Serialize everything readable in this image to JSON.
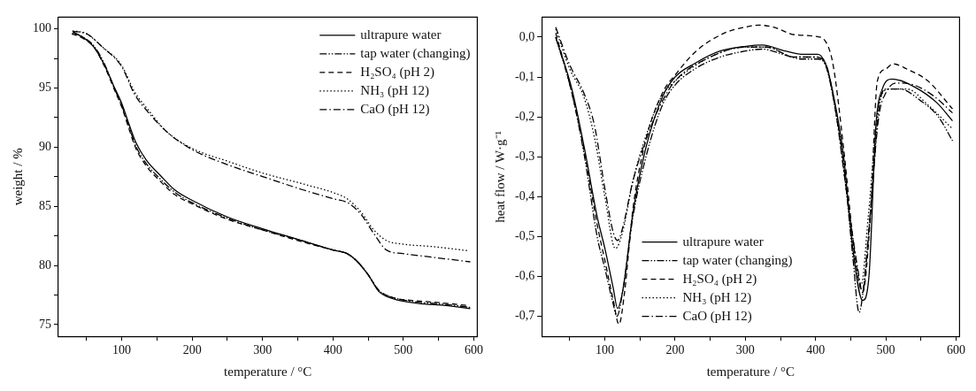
{
  "chart_data": [
    {
      "type": "line",
      "xlabel": "temperature / °C",
      "ylabel": "weight / %",
      "xlim": [
        10,
        605
      ],
      "ylim": [
        74,
        101
      ],
      "xticks": [
        {
          "value": 50,
          "label": null
        },
        100,
        {
          "value": 150,
          "label": null
        },
        200,
        {
          "value": 250,
          "label": null
        },
        300,
        {
          "value": 350,
          "label": null
        },
        400,
        {
          "value": 450,
          "label": null
        },
        500,
        {
          "value": 550,
          "label": null
        },
        600
      ],
      "yticks": [
        75,
        {
          "value": 77.5,
          "label": null
        },
        80,
        {
          "value": 82.5,
          "label": null
        },
        85,
        {
          "value": 87.5,
          "label": null
        },
        90,
        {
          "value": 92.5,
          "label": null
        },
        95,
        {
          "value": 97.5,
          "label": null
        },
        100
      ],
      "grid": false,
      "legend": "top right",
      "marker": "none",
      "series": [
        {
          "name": "ultrapure water",
          "color": "#000000",
          "line_style": "solid",
          "x": [
            30,
            45,
            60,
            75,
            90,
            100,
            110,
            120,
            135,
            155,
            175,
            200,
            250,
            300,
            350,
            400,
            420,
            435,
            450,
            465,
            475,
            490,
            520,
            560,
            595
          ],
          "values": [
            99.7,
            99.3,
            98.5,
            97.0,
            95.0,
            93.7,
            92.0,
            90.4,
            88.9,
            87.6,
            86.4,
            85.5,
            84.1,
            83.1,
            82.2,
            81.3,
            81.0,
            80.3,
            79.2,
            77.8,
            77.4,
            77.1,
            76.8,
            76.6,
            76.35
          ]
        },
        {
          "name": "tap water (changing)",
          "color": "#000000",
          "line_style": "dashdotdot",
          "x": [
            31,
            45,
            60,
            75,
            90,
            100,
            110,
            120,
            135,
            155,
            175,
            200,
            250,
            300,
            350,
            400,
            420,
            435,
            450,
            465,
            475,
            490,
            520,
            560,
            595
          ],
          "values": [
            99.75,
            99.3,
            98.6,
            97.1,
            94.9,
            93.5,
            91.8,
            90.1,
            88.6,
            87.3,
            86.2,
            85.3,
            84.0,
            83.0,
            82.2,
            81.3,
            81.0,
            80.3,
            79.2,
            77.9,
            77.5,
            77.2,
            76.9,
            76.7,
            76.45
          ]
        },
        {
          "name": "H₂SO₄ (pH 2)",
          "color": "#000000",
          "line_style": "dashed",
          "x": [
            29,
            45,
            60,
            75,
            90,
            100,
            110,
            120,
            135,
            155,
            175,
            200,
            250,
            300,
            350,
            400,
            420,
            435,
            450,
            465,
            475,
            490,
            520,
            560,
            592
          ],
          "values": [
            99.6,
            99.2,
            98.5,
            96.9,
            94.8,
            93.4,
            91.6,
            89.9,
            88.4,
            87.1,
            86.0,
            85.2,
            83.9,
            83.0,
            82.1,
            81.3,
            81.0,
            80.3,
            79.2,
            77.9,
            77.5,
            77.2,
            77.0,
            76.8,
            76.6
          ]
        },
        {
          "name": "NH₃ (pH 12)",
          "color": "#000000",
          "line_style": "dotted",
          "x": [
            30,
            50,
            72,
            100,
            118,
            137,
            164,
            200,
            251,
            301,
            357,
            403,
            421,
            440,
            458,
            476,
            499,
            540,
            591
          ],
          "values": [
            99.85,
            99.6,
            98.5,
            96.9,
            94.7,
            93.2,
            91.3,
            89.9,
            88.8,
            87.8,
            86.9,
            86.1,
            85.6,
            84.5,
            83.0,
            82.1,
            81.8,
            81.6,
            81.25
          ]
        },
        {
          "name": "CaO (pH 12)",
          "color": "#000000",
          "line_style": "dashdot",
          "x": [
            30,
            50,
            72,
            100,
            118,
            137,
            164,
            200,
            251,
            301,
            357,
            403,
            421,
            440,
            458,
            476,
            499,
            540,
            595
          ],
          "values": [
            99.8,
            99.6,
            98.5,
            96.8,
            94.5,
            93.0,
            91.3,
            89.8,
            88.5,
            87.5,
            86.4,
            85.6,
            85.3,
            84.3,
            82.7,
            81.3,
            81.0,
            80.7,
            80.3
          ]
        }
      ]
    },
    {
      "type": "line",
      "xlabel": "temperature / °C",
      "ylabel": "heat flow / W·g⁻¹",
      "xlim": [
        10,
        605
      ],
      "ylim": [
        -0.75,
        0.05
      ],
      "xticks": [
        {
          "value": 50,
          "label": null
        },
        100,
        {
          "value": 150,
          "label": null
        },
        200,
        {
          "value": 250,
          "label": null
        },
        300,
        {
          "value": 350,
          "label": null
        },
        400,
        {
          "value": 450,
          "label": null
        },
        500,
        {
          "value": 550,
          "label": null
        },
        600
      ],
      "yticks": [
        {
          "value": -0.7,
          "label": "-0,7"
        },
        {
          "value": -0.6,
          "label": "-0,6"
        },
        {
          "value": -0.5,
          "label": "-0,5"
        },
        {
          "value": -0.4,
          "label": "-0,4"
        },
        {
          "value": -0.3,
          "label": "-0,3"
        },
        {
          "value": -0.2,
          "label": "-0,2"
        },
        {
          "value": -0.1,
          "label": "-0,1"
        },
        {
          "value": 0,
          "label": "0,0"
        }
      ],
      "grid": false,
      "legend": "bottom",
      "marker": "none",
      "series": [
        {
          "name": "ultrapure water",
          "color": "#000000",
          "line_style": "solid",
          "x": [
            30,
            53,
            71,
            89,
            100,
            112,
            118,
            126,
            140,
            158,
            182,
            200,
            228,
            264,
            301,
            324,
            357,
            380,
            403,
            414,
            426,
            440,
            453,
            467,
            476,
            486,
            495,
            509,
            541,
            573,
            595
          ],
          "values": [
            0.0,
            -0.13,
            -0.28,
            -0.45,
            -0.53,
            -0.63,
            -0.68,
            -0.63,
            -0.44,
            -0.28,
            -0.15,
            -0.1,
            -0.066,
            -0.035,
            -0.023,
            -0.02,
            -0.035,
            -0.043,
            -0.043,
            -0.066,
            -0.15,
            -0.3,
            -0.53,
            -0.66,
            -0.6,
            -0.22,
            -0.13,
            -0.105,
            -0.125,
            -0.165,
            -0.21
          ]
        },
        {
          "name": "tap water (changing)",
          "color": "#000000",
          "line_style": "dashdotdot",
          "x": [
            30,
            53,
            71,
            89,
            100,
            112,
            117,
            126,
            140,
            160,
            182,
            200,
            228,
            264,
            300,
            324,
            357,
            380,
            403,
            414,
            426,
            440,
            453,
            462,
            470,
            480,
            490,
            500,
            520,
            550,
            575,
            595
          ],
          "values": [
            0.0,
            -0.14,
            -0.3,
            -0.5,
            -0.58,
            -0.67,
            -0.7,
            -0.63,
            -0.45,
            -0.29,
            -0.17,
            -0.12,
            -0.08,
            -0.05,
            -0.035,
            -0.03,
            -0.045,
            -0.055,
            -0.055,
            -0.07,
            -0.16,
            -0.32,
            -0.55,
            -0.69,
            -0.6,
            -0.4,
            -0.18,
            -0.13,
            -0.13,
            -0.16,
            -0.2,
            -0.26
          ]
        },
        {
          "name": "H₂SO₄ (pH 2)",
          "color": "#000000",
          "line_style": "dashed",
          "x": [
            30,
            53,
            71,
            89,
            100,
            112,
            120,
            128,
            140,
            158,
            182,
            200,
            230,
            270,
            300,
            320,
            340,
            370,
            400,
            415,
            425,
            440,
            455,
            467,
            478,
            488,
            500,
            510,
            530,
            560,
            595
          ],
          "values": [
            0.01,
            -0.14,
            -0.29,
            -0.47,
            -0.56,
            -0.66,
            -0.72,
            -0.64,
            -0.43,
            -0.26,
            -0.14,
            -0.095,
            -0.035,
            0.01,
            0.025,
            0.03,
            0.025,
            0.006,
            0.002,
            -0.013,
            -0.07,
            -0.28,
            -0.53,
            -0.64,
            -0.45,
            -0.11,
            -0.08,
            -0.067,
            -0.08,
            -0.11,
            -0.18
          ]
        },
        {
          "name": "NH₃ (pH 12)",
          "color": "#000000",
          "line_style": "dotted",
          "x": [
            30,
            50,
            70,
            85,
            100,
            115,
            125,
            140,
            160,
            180,
            200,
            250,
            300,
            330,
            370,
            400,
            415,
            430,
            445,
            460,
            465,
            475,
            490,
            505,
            530,
            560,
            595
          ],
          "values": [
            0.02,
            -0.08,
            -0.15,
            -0.25,
            -0.4,
            -0.53,
            -0.49,
            -0.36,
            -0.24,
            -0.15,
            -0.11,
            -0.05,
            -0.025,
            -0.025,
            -0.05,
            -0.05,
            -0.07,
            -0.2,
            -0.4,
            -0.6,
            -0.62,
            -0.45,
            -0.17,
            -0.13,
            -0.13,
            -0.17,
            -0.23
          ]
        },
        {
          "name": "CaO (pH 12)",
          "color": "#000000",
          "line_style": "dashdot",
          "x": [
            30,
            50,
            70,
            85,
            100,
            112,
            118,
            125,
            140,
            160,
            182,
            200,
            250,
            300,
            330,
            370,
            400,
            414,
            428,
            445,
            460,
            467,
            475,
            490,
            500,
            515,
            540,
            570,
            595
          ],
          "values": [
            0.025,
            -0.07,
            -0.14,
            -0.22,
            -0.38,
            -0.49,
            -0.51,
            -0.48,
            -0.36,
            -0.25,
            -0.16,
            -0.11,
            -0.05,
            -0.025,
            -0.025,
            -0.05,
            -0.05,
            -0.065,
            -0.18,
            -0.4,
            -0.58,
            -0.64,
            -0.5,
            -0.2,
            -0.14,
            -0.115,
            -0.12,
            -0.15,
            -0.19
          ]
        }
      ]
    }
  ]
}
